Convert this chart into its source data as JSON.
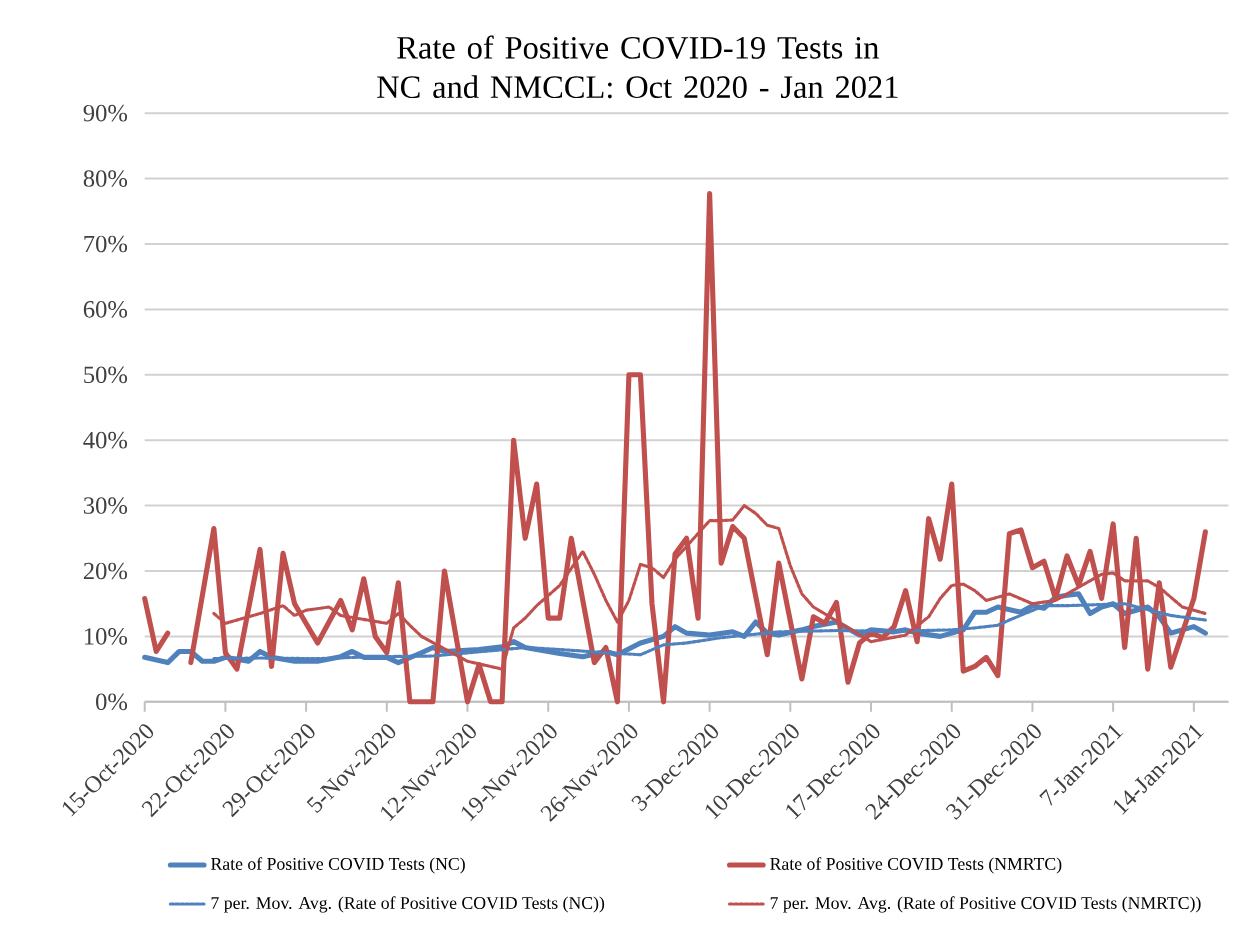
{
  "chart_data": {
    "type": "line",
    "title": "Rate of Positive COVID-19 Tests in NC and NMCCL: Oct 2020 - Jan 2021",
    "xlim": [
      "2020-10-15",
      "2021-01-17"
    ],
    "ylim": [
      0,
      90
    ],
    "xticks": [
      {
        "value": "2020-10-15",
        "label": "15-Oct-2020"
      },
      {
        "value": "2020-10-22",
        "label": "22-Oct-2020"
      },
      {
        "value": "2020-10-29",
        "label": "29-Oct-2020"
      },
      {
        "value": "2020-11-05",
        "label": "5-Nov-2020"
      },
      {
        "value": "2020-11-12",
        "label": "12-Nov-2020"
      },
      {
        "value": "2020-11-19",
        "label": "19-Nov-2020"
      },
      {
        "value": "2020-11-26",
        "label": "26-Nov-2020"
      },
      {
        "value": "2020-12-03",
        "label": "3-Dec-2020"
      },
      {
        "value": "2020-12-10",
        "label": "10-Dec-2020"
      },
      {
        "value": "2020-12-17",
        "label": "17-Dec-2020"
      },
      {
        "value": "2020-12-24",
        "label": "24-Dec-2020"
      },
      {
        "value": "2020-12-31",
        "label": "31-Dec-2020"
      },
      {
        "value": "2021-01-07",
        "label": "7-Jan-2021"
      },
      {
        "value": "2021-01-14",
        "label": "14-Jan-2021"
      }
    ],
    "yticks": [
      {
        "value": 0,
        "label": "0%"
      },
      {
        "value": 10,
        "label": "10%"
      },
      {
        "value": 20,
        "label": "20%"
      },
      {
        "value": 30,
        "label": "30%"
      },
      {
        "value": 40,
        "label": "40%"
      },
      {
        "value": 50,
        "label": "50%"
      },
      {
        "value": 60,
        "label": "60%"
      },
      {
        "value": 70,
        "label": "70%"
      },
      {
        "value": 80,
        "label": "80%"
      },
      {
        "value": 90,
        "label": "90%"
      }
    ],
    "grid": "y",
    "legend": "bottom",
    "marker": "none",
    "series": [
      {
        "name": "Rate of Positive COVID Tests (NC)",
        "color": "#4f81bd",
        "line_style": "solid",
        "x": [
          "2020-10-15",
          "2020-10-17",
          "2020-10-18",
          "2020-10-19",
          "2020-10-20",
          "2020-10-21",
          "2020-10-22",
          "2020-10-24",
          "2020-10-25",
          "2020-10-26",
          "2020-10-28",
          "2020-10-30",
          "2020-11-01",
          "2020-11-02",
          "2020-11-03",
          "2020-11-05",
          "2020-11-06",
          "2020-11-08",
          "2020-11-09",
          "2020-11-10",
          "2020-11-13",
          "2020-11-15",
          "2020-11-16",
          "2020-11-17",
          "2020-11-18",
          "2020-11-20",
          "2020-11-22",
          "2020-11-24",
          "2020-11-25",
          "2020-11-27",
          "2020-11-29",
          "2020-11-30",
          "2020-12-01",
          "2020-12-03",
          "2020-12-05",
          "2020-12-06",
          "2020-12-07",
          "2020-12-08",
          "2020-12-09",
          "2020-12-11",
          "2020-12-12",
          "2020-12-14",
          "2020-12-16",
          "2020-12-17",
          "2020-12-19",
          "2020-12-20",
          "2020-12-21",
          "2020-12-23",
          "2020-12-25",
          "2020-12-26",
          "2020-12-27",
          "2020-12-28",
          "2020-12-30",
          "2020-12-31",
          "2021-01-01",
          "2021-01-02",
          "2021-01-03",
          "2021-01-04",
          "2021-01-05",
          "2021-01-06",
          "2021-01-07",
          "2021-01-08",
          "2021-01-10",
          "2021-01-11",
          "2021-01-12",
          "2021-01-14",
          "2021-01-15"
        ],
        "values": [
          6.8,
          6.0,
          7.7,
          7.7,
          6.2,
          6.2,
          6.8,
          6.2,
          7.7,
          6.8,
          6.2,
          6.2,
          6.9,
          7.7,
          6.8,
          6.8,
          6.0,
          7.5,
          8.3,
          7.7,
          8.0,
          8.4,
          9.2,
          8.3,
          8.0,
          7.4,
          6.9,
          7.7,
          7.2,
          9.0,
          10,
          11.5,
          10.5,
          10.2,
          10.7,
          10,
          12.2,
          10.5,
          10.2,
          11,
          11.5,
          12.2,
          10.2,
          11,
          10.7,
          11,
          10.5,
          10,
          11,
          13.7,
          13.7,
          14.5,
          13.7,
          14.7,
          14.3,
          16,
          16.3,
          16.5,
          13.5,
          14.5,
          15,
          13.5,
          14.5,
          13,
          10.5,
          11.5,
          10.5
        ]
      },
      {
        "name": "Rate of Positive COVID Tests (NMRTC)",
        "color": "#c0504d",
        "line_style": "solid",
        "x": [
          "2020-10-15",
          "2020-10-16",
          "2020-10-17",
          "2020-10-18",
          "2020-10-19",
          "2020-10-21",
          "2020-10-22",
          "2020-10-23",
          "2020-10-25",
          "2020-10-26",
          "2020-10-27",
          "2020-10-28",
          "2020-10-30",
          "2020-11-01",
          "2020-11-02",
          "2020-11-03",
          "2020-11-04",
          "2020-11-05",
          "2020-11-06",
          "2020-11-07",
          "2020-11-08",
          "2020-11-09",
          "2020-11-10",
          "2020-11-12",
          "2020-11-13",
          "2020-11-14",
          "2020-11-15",
          "2020-11-16",
          "2020-11-17",
          "2020-11-18",
          "2020-11-19",
          "2020-11-20",
          "2020-11-21",
          "2020-11-23",
          "2020-11-24",
          "2020-11-25",
          "2020-11-26",
          "2020-11-27",
          "2020-11-28",
          "2020-11-29",
          "2020-11-30",
          "2020-12-01",
          "2020-12-02",
          "2020-12-03",
          "2020-12-04",
          "2020-12-05",
          "2020-12-06",
          "2020-12-08",
          "2020-12-09",
          "2020-12-11",
          "2020-12-12",
          "2020-12-13",
          "2020-12-14",
          "2020-12-15",
          "2020-12-16",
          "2020-12-17",
          "2020-12-18",
          "2020-12-19",
          "2020-12-20",
          "2020-12-21",
          "2020-12-22",
          "2020-12-23",
          "2020-12-24",
          "2020-12-25",
          "2020-12-26",
          "2020-12-27",
          "2020-12-28",
          "2020-12-29",
          "2020-12-30",
          "2020-12-31",
          "2021-01-01",
          "2021-01-02",
          "2021-01-03",
          "2021-01-04",
          "2021-01-05",
          "2021-01-06",
          "2021-01-07",
          "2021-01-08",
          "2021-01-09",
          "2021-01-10",
          "2021-01-11",
          "2021-01-12",
          "2021-01-14",
          "2021-01-15"
        ],
        "values": [
          15.8,
          7.7,
          10.5,
          null,
          6.0,
          26.5,
          7.5,
          5.0,
          23.3,
          5.4,
          22.7,
          15.0,
          9.0,
          15.5,
          11.0,
          18.8,
          10.0,
          7.5,
          18.2,
          0,
          0,
          0,
          20,
          0,
          5.7,
          0,
          0,
          40,
          25,
          33.3,
          12.8,
          12.8,
          25,
          6,
          8.3,
          0,
          50,
          50,
          15,
          0,
          22.6,
          25,
          12.8,
          77.7,
          21.2,
          26.8,
          25,
          7.2,
          21.2,
          3.5,
          13,
          12,
          15.2,
          3,
          9,
          10.5,
          9.8,
          11.5,
          17,
          9.2,
          28,
          21.8,
          33.3,
          4.7,
          5.4,
          6.8,
          4,
          25.7,
          26.3,
          20.5,
          21.5,
          15.8,
          22.3,
          17.8,
          23,
          15.8,
          27.2,
          8.3,
          25,
          5,
          18.2,
          5.3,
          15.8,
          26
        ]
      },
      {
        "name": "7 per. Mov. Avg. (Rate of Positive COVID Tests (NC))",
        "color": "#4f81bd",
        "line_style": "dotted",
        "x": [
          "2020-10-21",
          "2020-10-25",
          "2020-10-30",
          "2020-11-04",
          "2020-11-09",
          "2020-11-14",
          "2020-11-17",
          "2020-11-20",
          "2020-11-24",
          "2020-11-27",
          "2020-11-29",
          "2020-12-01",
          "2020-12-04",
          "2020-12-09",
          "2020-12-14",
          "2020-12-19",
          "2020-12-24",
          "2020-12-26",
          "2020-12-28",
          "2020-12-29",
          "2021-01-01",
          "2021-01-03",
          "2021-01-08",
          "2021-01-12",
          "2021-01-15"
        ],
        "values": [
          6.6,
          6.7,
          6.6,
          6.9,
          7.0,
          7.8,
          8.3,
          8.0,
          7.5,
          7.2,
          8.7,
          9.0,
          9.8,
          10.7,
          10.9,
          10.8,
          11.0,
          11.3,
          11.7,
          12.5,
          14.7,
          14.7,
          15.0,
          13.2,
          12.5
        ]
      },
      {
        "name": "7 per. Mov. Avg. (Rate of Positive COVID Tests (NMRTC))",
        "color": "#c0504d",
        "line_style": "dotted",
        "x": [
          "2020-10-21",
          "2020-10-22",
          "2020-10-25",
          "2020-10-27",
          "2020-10-28",
          "2020-10-29",
          "2020-10-31",
          "2020-11-01",
          "2020-11-05",
          "2020-11-06",
          "2020-11-07",
          "2020-11-08",
          "2020-11-12",
          "2020-11-15",
          "2020-11-16",
          "2020-11-17",
          "2020-11-18",
          "2020-11-20",
          "2020-11-22",
          "2020-11-23",
          "2020-11-24",
          "2020-11-25",
          "2020-11-26",
          "2020-11-27",
          "2020-11-28",
          "2020-11-29",
          "2020-11-30",
          "2020-12-03",
          "2020-12-04",
          "2020-12-05",
          "2020-12-06",
          "2020-12-07",
          "2020-12-08",
          "2020-12-09",
          "2020-12-10",
          "2020-12-11",
          "2020-12-12",
          "2020-12-17",
          "2020-12-20",
          "2020-12-22",
          "2020-12-23",
          "2020-12-24",
          "2020-12-25",
          "2020-12-26",
          "2020-12-27",
          "2020-12-29",
          "2020-12-31",
          "2021-01-02",
          "2021-01-04",
          "2021-01-06",
          "2021-01-07",
          "2021-01-08",
          "2021-01-10",
          "2021-01-11",
          "2021-01-12",
          "2021-01-13",
          "2021-01-15"
        ],
        "values": [
          13.5,
          12,
          13.5,
          14.7,
          13.2,
          14,
          14.5,
          13.2,
          12,
          13.5,
          11.7,
          10,
          6.2,
          5,
          11.3,
          12.8,
          14.7,
          17.8,
          23,
          19.5,
          15.5,
          12.2,
          15.5,
          21,
          20.5,
          19,
          21.8,
          27.7,
          27.7,
          27.8,
          30,
          28.8,
          27,
          26.5,
          20.8,
          16.5,
          14.5,
          9.2,
          10.2,
          13,
          15.8,
          17.8,
          18,
          17,
          15.5,
          16.5,
          15,
          15.5,
          17.5,
          19.5,
          19.7,
          18.5,
          18.5,
          17.5,
          16,
          14.5,
          13.5
        ]
      }
    ]
  }
}
